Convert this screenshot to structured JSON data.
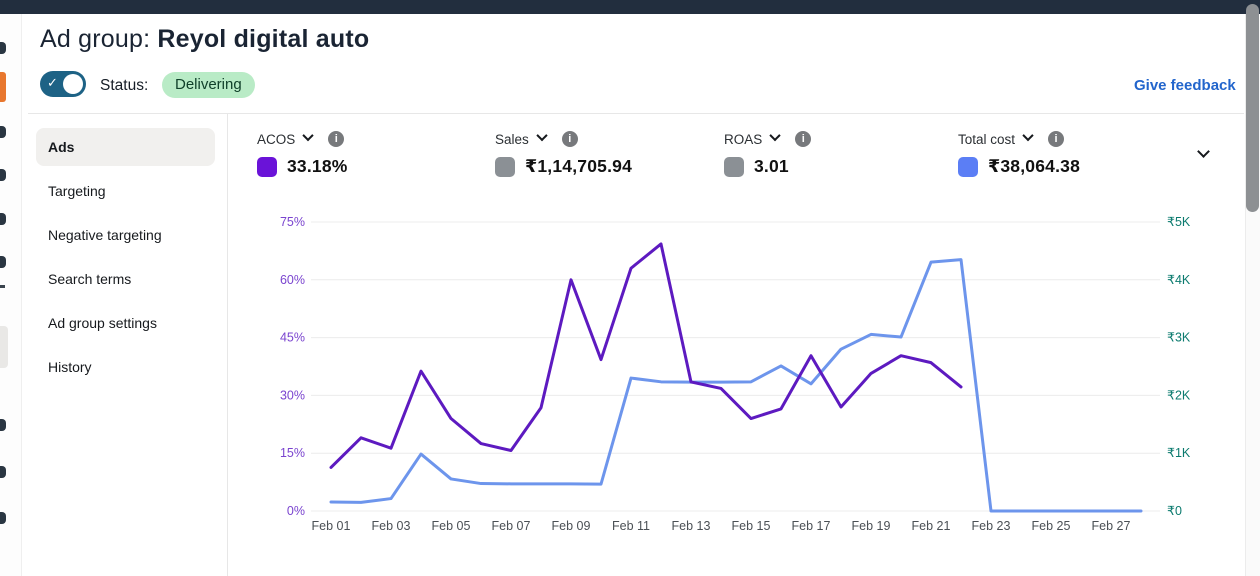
{
  "header": {
    "title_prefix": "Ad group: ",
    "title_name": "Reyol digital auto",
    "status_label": "Status:",
    "status_value": "Delivering",
    "feedback_link": "Give feedback"
  },
  "icons": {
    "check": "✓",
    "info": "i",
    "chevron_down": "chevron-down",
    "toggle_state": "on"
  },
  "sidebar": {
    "items": [
      {
        "label": "Ads",
        "selected": true
      },
      {
        "label": "Targeting",
        "selected": false
      },
      {
        "label": "Negative targeting",
        "selected": false
      },
      {
        "label": "Search terms",
        "selected": false
      },
      {
        "label": "Ad group settings",
        "selected": false
      },
      {
        "label": "History",
        "selected": false
      }
    ]
  },
  "metrics": [
    {
      "name": "ACOS",
      "value": "33.18%",
      "swatch": "#6a13d8"
    },
    {
      "name": "Sales",
      "value": "₹1,14,705.94",
      "swatch": "#8b9095"
    },
    {
      "name": "ROAS",
      "value": "3.01",
      "swatch": "#8b9095"
    },
    {
      "name": "Total cost",
      "value": "₹38,064.38",
      "swatch": "#5b7ef5"
    }
  ],
  "chart_data": {
    "type": "line",
    "x": [
      "Feb 01",
      "Feb 02",
      "Feb 03",
      "Feb 04",
      "Feb 05",
      "Feb 06",
      "Feb 07",
      "Feb 08",
      "Feb 09",
      "Feb 10",
      "Feb 11",
      "Feb 12",
      "Feb 13",
      "Feb 14",
      "Feb 15",
      "Feb 16",
      "Feb 17",
      "Feb 18",
      "Feb 19",
      "Feb 20",
      "Feb 21",
      "Feb 22",
      "Feb 23",
      "Feb 24",
      "Feb 25",
      "Feb 26",
      "Feb 27",
      "Feb 28"
    ],
    "x_tick_labels": [
      "Feb 01",
      "Feb 03",
      "Feb 05",
      "Feb 07",
      "Feb 09",
      "Feb 11",
      "Feb 13",
      "Feb 15",
      "Feb 17",
      "Feb 19",
      "Feb 21",
      "Feb 23",
      "Feb 25",
      "Feb 27"
    ],
    "series": [
      {
        "name": "ACOS",
        "axis": "left",
        "unit": "%",
        "color": "#5d1ac0",
        "values": [
          11.3,
          19.0,
          16.3,
          36.3,
          24.0,
          17.5,
          15.7,
          26.8,
          60.0,
          39.3,
          63.0,
          69.3,
          33.5,
          31.8,
          24.0,
          26.5,
          40.3,
          27.0,
          35.7,
          40.3,
          38.5,
          32.2,
          null,
          null,
          null,
          null,
          null,
          null
        ]
      },
      {
        "name": "Total cost",
        "axis": "right",
        "unit": "₹",
        "color": "#6d95ec",
        "values": [
          155,
          150,
          215,
          985,
          555,
          475,
          470,
          470,
          470,
          465,
          2300,
          2235,
          2230,
          2230,
          2235,
          2510,
          2200,
          2800,
          3055,
          3010,
          4305,
          4350,
          0,
          0,
          0,
          0,
          0,
          0
        ]
      }
    ],
    "left_axis": {
      "labels": [
        "0%",
        "15%",
        "30%",
        "45%",
        "60%",
        "75%"
      ],
      "min": 0,
      "max": 75,
      "color": "#7a44cf"
    },
    "right_axis": {
      "labels": [
        "₹0",
        "₹1K",
        "₹2K",
        "₹3K",
        "₹4K",
        "₹5K"
      ],
      "min": 0,
      "max": 5000,
      "color": "#0b7a6e"
    },
    "grid": true,
    "legend_position": "top"
  }
}
